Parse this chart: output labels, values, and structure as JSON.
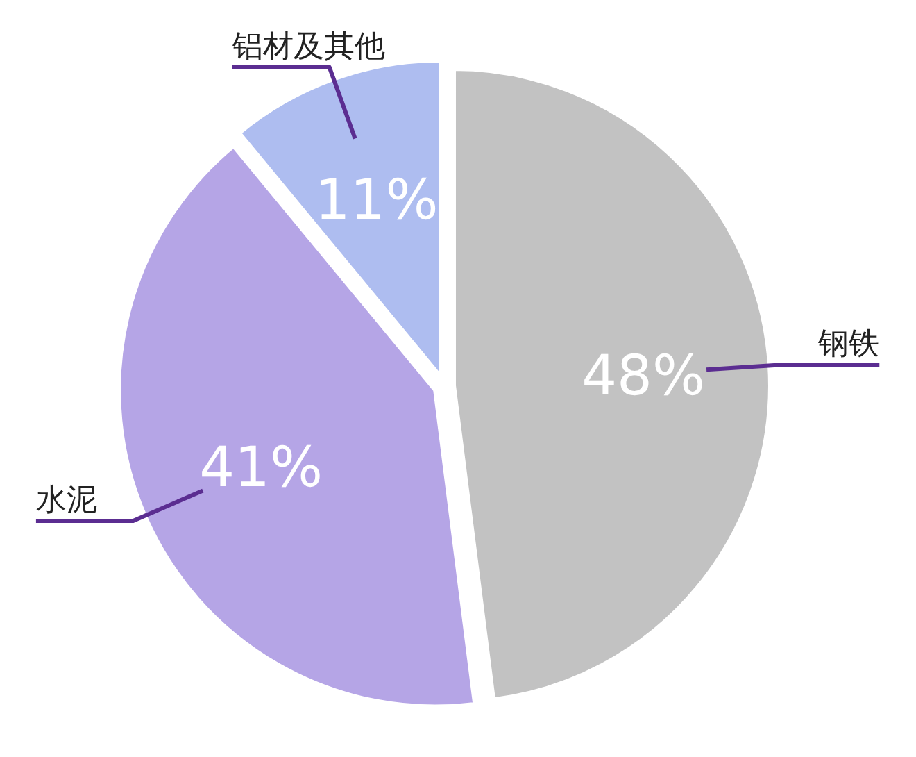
{
  "chart_data": {
    "type": "pie",
    "categories": [
      "钢铁",
      "水泥",
      "铝材及其他"
    ],
    "values": [
      48,
      41,
      11
    ],
    "colors": [
      "#c2c2c2",
      "#b5a5e6",
      "#aebdf0"
    ],
    "value_labels": [
      "48%",
      "41%",
      "11%"
    ]
  }
}
